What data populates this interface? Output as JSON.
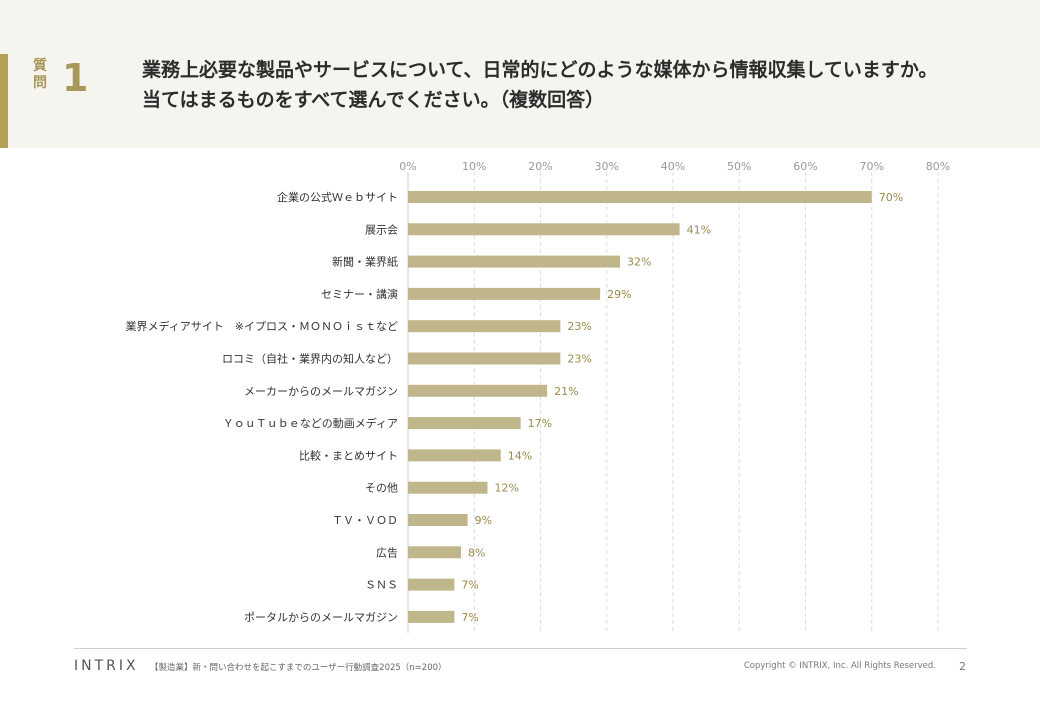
{
  "question": {
    "label": "質問",
    "number": "1",
    "line1": "業務上必要な製品やサービスについて、日常的にどのような媒体から情報収集していますか。",
    "line2": "当てはまるものをすべて選んでください。（複数回答）"
  },
  "chart_data": {
    "type": "bar",
    "orientation": "horizontal",
    "title": "",
    "xlabel": "",
    "ylabel": "",
    "xlim": [
      0,
      80
    ],
    "xticks": [
      "0%",
      "10%",
      "20%",
      "30%",
      "40%",
      "50%",
      "60%",
      "70%",
      "80%"
    ],
    "tick_values": [
      0,
      10,
      20,
      30,
      40,
      50,
      60,
      70,
      80
    ],
    "grid": true,
    "categories": [
      "企業の公式Ｗｅｂサイト",
      "展示会",
      "新聞・業界紙",
      "セミナー・講演",
      "業界メディアサイト　※イプロス・ＭＯＮＯｉｓｔなど",
      "ロコミ（自社・業界内の知人など）",
      "メーカーからのメールマガジン",
      "ＹｏｕＴｕｂｅなどの動画メディア",
      "比較・まとめサイト",
      "その他",
      "ＴＶ・ＶＯＤ",
      "広告",
      "ＳＮＳ",
      "ポータルからのメールマガジン"
    ],
    "values": [
      70,
      41,
      32,
      29,
      23,
      23,
      21,
      17,
      14,
      12,
      9,
      8,
      7,
      7
    ],
    "value_labels": [
      "70%",
      "41%",
      "32%",
      "29%",
      "23%",
      "23%",
      "21%",
      "17%",
      "14%",
      "12%",
      "9%",
      "8%",
      "7%",
      "7%"
    ],
    "bar_color": "#c0b68c",
    "label_color": "#9a8a4a"
  },
  "footer": {
    "logo": "INTRIX",
    "source": "【製造業】新・問い合わせを起こすまでのユーザー行動調査2025（n=200）",
    "copyright": "Copyright © INTRIX, Inc. All Rights Reserved.",
    "page": "2"
  }
}
